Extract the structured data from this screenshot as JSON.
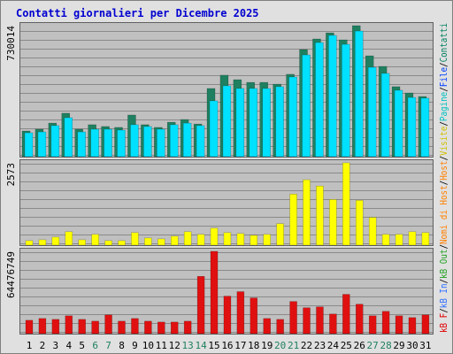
{
  "title": "Contatti giornalieri per Dicembre 2025",
  "legend_separator": "/",
  "legend": [
    {
      "name": "kB F",
      "color": "#e00000"
    },
    {
      "name": "kB In",
      "color": "#2f6fff"
    },
    {
      "name": "kB Out",
      "color": "#20a020"
    },
    {
      "name": "Nomi di Host",
      "color": "#ff8000"
    },
    {
      "name": "Host",
      "color": "#ff8000"
    },
    {
      "name": "Visite",
      "color": "#d0c000"
    },
    {
      "name": "Pagine",
      "color": "#00c0c0"
    },
    {
      "name": "File",
      "color": "#0040ff"
    },
    {
      "name": "Contatti",
      "color": "#008060"
    }
  ],
  "chart_data": [
    {
      "type": "bar",
      "categories": [
        "1",
        "2",
        "3",
        "4",
        "5",
        "6",
        "7",
        "8",
        "9",
        "10",
        "11",
        "12",
        "13",
        "14",
        "15",
        "16",
        "17",
        "18",
        "19",
        "20",
        "21",
        "22",
        "23",
        "24",
        "25",
        "26",
        "27",
        "28",
        "29",
        "30",
        "31"
      ],
      "label_colors": [
        "#000",
        "#000",
        "#000",
        "#000",
        "#000",
        "#208060",
        "#208060",
        "#000",
        "#000",
        "#000",
        "#000",
        "#000",
        "#208060",
        "#208060",
        "#000",
        "#000",
        "#000",
        "#000",
        "#000",
        "#208060",
        "#208060",
        "#000",
        "#000",
        "#000",
        "#000",
        "#000",
        "#208060",
        "#208060",
        "#000",
        "#000",
        "#000"
      ],
      "ylim": [
        0,
        730014
      ],
      "yticks": [
        730014
      ],
      "series": [
        {
          "color": "#1e8060",
          "values": [
            143000,
            153000,
            187000,
            242000,
            153000,
            178000,
            168000,
            163000,
            232000,
            178000,
            163000,
            192000,
            207000,
            182000,
            380000,
            454000,
            429000,
            414000,
            414000,
            404000,
            459000,
            597000,
            656000,
            690000,
            651000,
            730014,
            562000,
            503000,
            390000,
            355000,
            335000
          ]
        },
        {
          "color": "#00e0ff",
          "values": [
            133000,
            138000,
            173000,
            217000,
            138000,
            153000,
            153000,
            148000,
            178000,
            168000,
            153000,
            178000,
            187000,
            173000,
            311000,
            395000,
            380000,
            380000,
            380000,
            390000,
            444000,
            567000,
            636000,
            676000,
            626000,
            700000,
            498000,
            464000,
            370000,
            330000,
            326000
          ]
        }
      ]
    },
    {
      "type": "bar",
      "ylim": [
        0,
        2573
      ],
      "yticks": [
        2573
      ],
      "series": [
        {
          "color": "#ffff00",
          "values": [
            140,
            168,
            252,
            420,
            168,
            336,
            140,
            140,
            392,
            224,
            196,
            280,
            420,
            336,
            532,
            392,
            364,
            308,
            336,
            672,
            1596,
            2044,
            1848,
            1428,
            2573,
            1400,
            868,
            336,
            336,
            420,
            392
          ]
        }
      ]
    },
    {
      "type": "bar",
      "ylim": [
        0,
        64476749
      ],
      "yticks": [
        64476749
      ],
      "series": [
        {
          "color": "#e01010",
          "values": [
            10500000,
            11900000,
            11200000,
            14000000,
            11200000,
            9800000,
            14700000,
            9800000,
            11900000,
            9800000,
            9100000,
            9100000,
            9800000,
            44900000,
            64476749,
            29400000,
            32900000,
            28000000,
            11900000,
            11200000,
            25200000,
            20300000,
            21000000,
            15400000,
            30800000,
            23100000,
            14000000,
            17500000,
            14000000,
            12600000,
            14700000
          ]
        }
      ]
    }
  ]
}
